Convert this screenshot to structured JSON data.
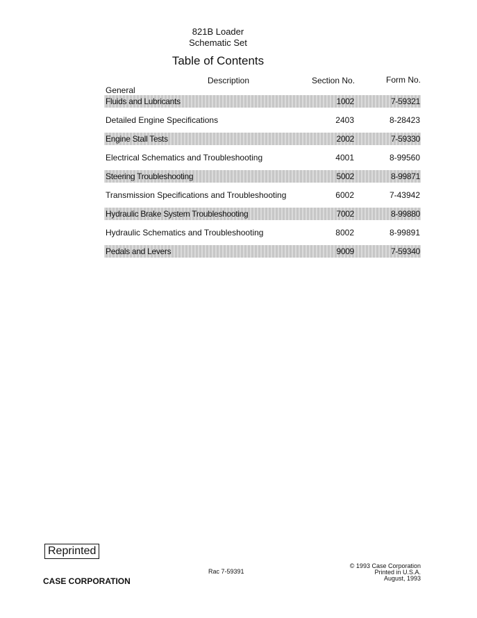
{
  "header": {
    "line1": "821B Loader",
    "line2": "Schematic Set",
    "title": "Table of Contents"
  },
  "columns": {
    "description": "Description",
    "section": "Section No.",
    "form": "Form No."
  },
  "group": "General",
  "rows": [
    {
      "description": "Fluids and Lubricants",
      "section": "1002",
      "form": "7-59321",
      "shaded": true
    },
    {
      "description": "Detailed Engine Specifications",
      "section": "2403",
      "form": "8-28423",
      "shaded": false
    },
    {
      "description": "Engine Stall Tests",
      "section": "2002",
      "form": "7-59330",
      "shaded": true
    },
    {
      "description": "Electrical Schematics and Troubleshooting",
      "section": "4001",
      "form": "8-99560",
      "shaded": false
    },
    {
      "description": "Steering Troubleshooting",
      "section": "5002",
      "form": "8-99871",
      "shaded": true
    },
    {
      "description": "Transmission Specifications and Troubleshooting",
      "section": "6002",
      "form": "7-43942",
      "shaded": false
    },
    {
      "description": "Hydraulic Brake System Troubleshooting",
      "section": "7002",
      "form": "8-99880",
      "shaded": true
    },
    {
      "description": "Hydraulic Schematics and Troubleshooting",
      "section": "8002",
      "form": "8-99891",
      "shaded": false
    },
    {
      "description": "Pedals and Levers",
      "section": "9009",
      "form": "7-59340",
      "shaded": true
    }
  ],
  "footer": {
    "reprinted": "Reprinted",
    "company": "CASE CORPORATION",
    "rac": "Rac 7-59391",
    "copyright": "© 1993 Case Corporation",
    "printed": "Printed in U.S.A.",
    "date": "August, 1993"
  }
}
